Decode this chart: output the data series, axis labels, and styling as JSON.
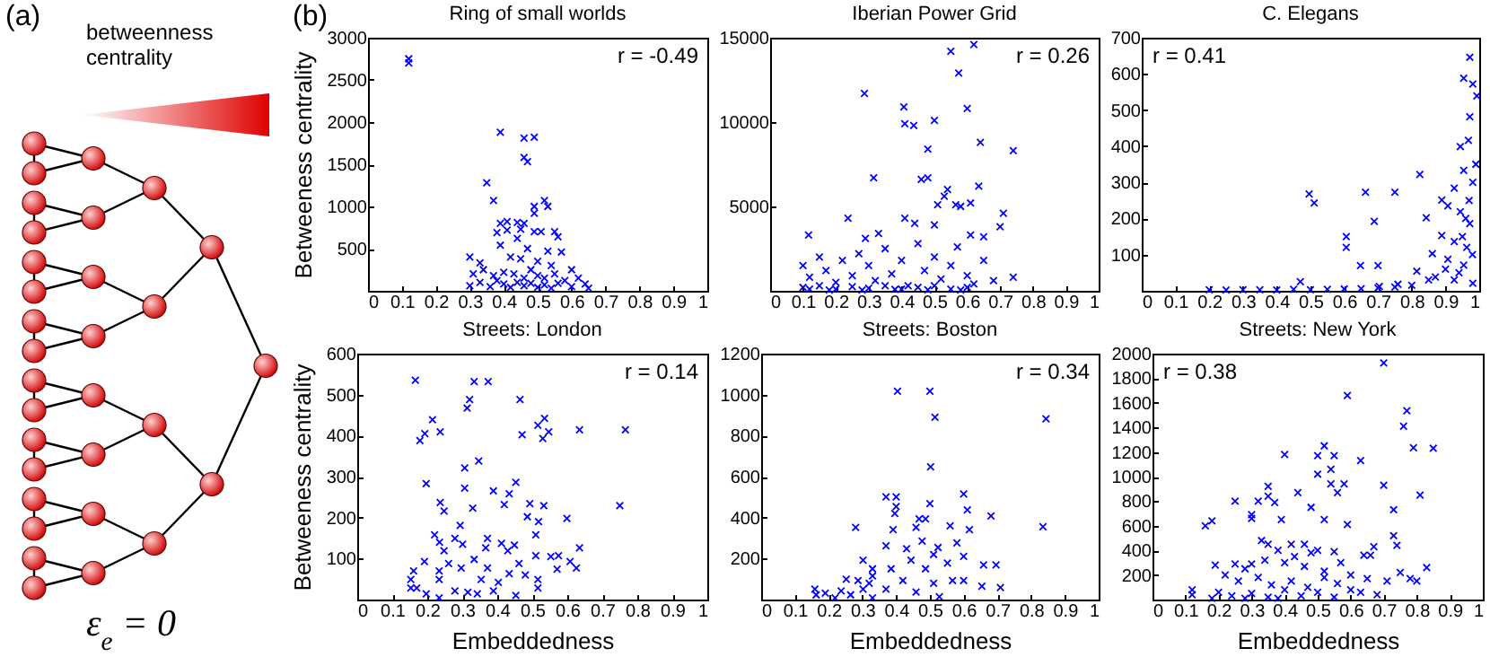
{
  "chart_data": [
    {
      "type": "other",
      "title": "(a)",
      "annotations": [
        "betweenness centrality",
        "ε$_{e}$ = 0",
        "(b)"
      ]
    },
    {
      "type": "scatter",
      "title": "Ring of small worlds",
      "ylabel": "Betweeness centrality",
      "annotations": [
        "r = -0.49"
      ],
      "marker": "cross",
      "xlim": [
        0,
        1
      ],
      "xticks": [
        0,
        0.1,
        0.2,
        0.3,
        0.4,
        0.5,
        0.6,
        0.7,
        0.8,
        0.9,
        1
      ],
      "ylim": [
        0,
        3000
      ],
      "yticks": [
        500,
        1000,
        1500,
        2000,
        2500,
        3000
      ],
      "series": [
        {
          "color": "#0000ff",
          "x": [
            0.12,
            0.12,
            0.39,
            0.46,
            0.49,
            0.46,
            0.47,
            0.35,
            0.37,
            0.52,
            0.49,
            0.53,
            0.49,
            0.39,
            0.41,
            0.44,
            0.46,
            0.45,
            0.41,
            0.38,
            0.44,
            0.49,
            0.51,
            0.55,
            0.56,
            0.39,
            0.47,
            0.53,
            0.57,
            0.3,
            0.33,
            0.42,
            0.45,
            0.5,
            0.54,
            0.6,
            0.31,
            0.34,
            0.37,
            0.4,
            0.43,
            0.46,
            0.48,
            0.5,
            0.52,
            0.55,
            0.58,
            0.62,
            0.64,
            0.3,
            0.33,
            0.36,
            0.38,
            0.4,
            0.42,
            0.44,
            0.46,
            0.48,
            0.5,
            0.52,
            0.54,
            0.56,
            0.6,
            0.65
          ],
          "values": [
            2750,
            2700,
            1880,
            1810,
            1820,
            1580,
            1530,
            1280,
            1070,
            1070,
            1000,
            1000,
            920,
            800,
            820,
            810,
            800,
            730,
            720,
            690,
            620,
            700,
            700,
            700,
            640,
            540,
            500,
            470,
            460,
            400,
            330,
            400,
            380,
            350,
            300,
            250,
            200,
            250,
            180,
            220,
            200,
            150,
            250,
            180,
            150,
            200,
            120,
            150,
            80,
            60,
            100,
            50,
            120,
            80,
            40,
            100,
            60,
            90,
            40,
            70,
            30,
            90,
            50,
            30
          ]
        }
      ]
    },
    {
      "type": "scatter",
      "title": "Iberian Power Grid",
      "annotations": [
        "r = 0.26"
      ],
      "marker": "cross",
      "xlim": [
        0,
        1
      ],
      "xticks": [
        0,
        0.1,
        0.2,
        0.3,
        0.4,
        0.5,
        0.6,
        0.7,
        0.8,
        0.9,
        1
      ],
      "ylim": [
        0,
        15000
      ],
      "yticks": [
        5000,
        10000,
        15000
      ],
      "series": [
        {
          "color": "#0000ff",
          "x": [
            0.55,
            0.62,
            0.574,
            0.6,
            0.407,
            0.41,
            0.437,
            0.5,
            0.64,
            0.74,
            0.48,
            0.48,
            0.46,
            0.54,
            0.635,
            0.51,
            0.53,
            0.565,
            0.58,
            0.61,
            0.71,
            0.41,
            0.7,
            0.44,
            0.5,
            0.61,
            0.65,
            0.74,
            0.287,
            0.315,
            0.237,
            0.117,
            0.29,
            0.33,
            0.1,
            0.12,
            0.15,
            0.17,
            0.2,
            0.22,
            0.25,
            0.27,
            0.3,
            0.32,
            0.35,
            0.37,
            0.4,
            0.42,
            0.45,
            0.47,
            0.5,
            0.52,
            0.55,
            0.57,
            0.6,
            0.62,
            0.65,
            0.68,
            0.1,
            0.15,
            0.2,
            0.25,
            0.3,
            0.35,
            0.4,
            0.45,
            0.5,
            0.55,
            0.6,
            0.12,
            0.18,
            0.28,
            0.38,
            0.48,
            0.58
          ],
          "values": [
            14200,
            14600,
            12900,
            10800,
            10900,
            9900,
            9800,
            10100,
            8800,
            8300,
            8400,
            6700,
            6600,
            6000,
            6200,
            5100,
            5600,
            5100,
            5000,
            5200,
            4600,
            4300,
            3800,
            4000,
            3900,
            3300,
            3200,
            800,
            11700,
            6700,
            4300,
            3300,
            3100,
            3400,
            1500,
            800,
            2000,
            1200,
            500,
            1800,
            900,
            2200,
            1500,
            600,
            2500,
            1000,
            1800,
            300,
            2800,
            1200,
            2000,
            700,
            1500,
            2600,
            900,
            400,
            1800,
            600,
            200,
            300,
            100,
            250,
            150,
            300,
            100,
            200,
            300,
            100,
            200,
            100,
            50,
            50,
            80,
            60,
            50
          ]
        }
      ]
    },
    {
      "type": "scatter",
      "title": "C. Elegans",
      "annotations": [
        "r = 0.41"
      ],
      "marker": "cross",
      "xlim": [
        0,
        1
      ],
      "xticks": [
        0,
        0.1,
        0.2,
        0.3,
        0.4,
        0.5,
        0.6,
        0.7,
        0.8,
        0.9,
        1
      ],
      "ylim": [
        0,
        700
      ],
      "yticks": [
        100,
        200,
        300,
        400,
        500,
        600,
        700
      ],
      "series": [
        {
          "color": "#0000ff",
          "x": [
            0.496,
            0.511,
            0.663,
            0.75,
            0.689,
            0.606,
            0.606,
            0.648,
            0.7,
            0.47,
            0.824,
            0.843,
            0.889,
            0.972,
            0.954,
            0.981,
            0.993,
            0.972,
            0.944,
            0.968,
            0.954,
            0.981,
            0.926,
            0.907,
            0.944,
            0.972,
            0.889,
            0.926,
            0.963,
            0.861,
            0.907,
            0.954,
            0.815,
            0.87,
            0.926,
            0.981,
            0.759,
            0.704,
            0.2,
            0.25,
            0.3,
            0.35,
            0.4,
            0.45,
            0.5,
            0.55,
            0.6,
            0.65,
            0.7,
            0.75,
            0.8,
            0.85,
            0.9,
            0.95,
            0.97,
            0.99,
            0.96,
            0.98,
            0.94
          ],
          "values": [
            268,
            243,
            273,
            273,
            192,
            150,
            120,
            70,
            70,
            25,
            322,
            202,
            251,
            646,
            588,
            572,
            539,
            481,
            399,
            416,
            333,
            300,
            284,
            235,
            219,
            186,
            153,
            136,
            120,
            103,
            87,
            71,
            54,
            38,
            30,
            21,
            18,
            12,
            3,
            2,
            3,
            3,
            2,
            4,
            3,
            4,
            5,
            6,
            8,
            10,
            15,
            30,
            60,
            150,
            250,
            350,
            200,
            100,
            50
          ]
        }
      ]
    },
    {
      "type": "scatter",
      "title": "Streets: London",
      "xlabel": "Embeddedness",
      "ylabel": "Betweeness centrality",
      "annotations": [
        "r = 0.14"
      ],
      "marker": "cross",
      "xlim": [
        0,
        1
      ],
      "xticks": [
        0,
        0.1,
        0.2,
        0.3,
        0.4,
        0.5,
        0.6,
        0.7,
        0.8,
        0.9,
        1
      ],
      "ylim": [
        0,
        600
      ],
      "yticks": [
        100,
        200,
        300,
        400,
        500,
        600
      ],
      "series": [
        {
          "color": "#0000ff",
          "x": [
            0.166,
            0.334,
            0.374,
            0.321,
            0.314,
            0.465,
            0.215,
            0.193,
            0.179,
            0.237,
            0.535,
            0.516,
            0.547,
            0.53,
            0.471,
            0.635,
            0.766,
            0.347,
            0.307,
            0.197,
            0.453,
            0.307,
            0.389,
            0.434,
            0.237,
            0.248,
            0.33,
            0.42,
            0.493,
            0.533,
            0.599,
            0.75,
            0.486,
            0.518,
            0.294,
            0.221,
            0.235,
            0.279,
            0.301,
            0.372,
            0.412,
            0.449,
            0.51,
            0.575,
            0.635,
            0.51,
            0.367,
            0.43,
            0.248,
            0.192,
            0.261,
            0.334,
            0.462,
            0.553,
            0.608,
            0.626,
            0.571,
            0.161,
            0.234,
            0.297,
            0.372,
            0.434,
            0.48,
            0.516,
            0.153,
            0.234,
            0.354,
            0.403,
            0.153,
            0.17,
            0.197,
            0.279,
            0.316,
            0.343,
            0.389,
            0.453,
            0.516,
            0.234
          ],
          "values": [
            535,
            532,
            532,
            488,
            467,
            488,
            439,
            405,
            388,
            409,
            442,
            425,
            409,
            393,
            402,
            414,
            414,
            338,
            321,
            283,
            286,
            272,
            265,
            258,
            237,
            216,
            223,
            232,
            234,
            229,
            198,
            229,
            202,
            190,
            181,
            158,
            140,
            149,
            135,
            149,
            137,
            133,
            158,
            107,
            126,
            107,
            126,
            119,
            119,
            93,
            88,
            98,
            88,
            105,
            93,
            77,
            74,
            70,
            70,
            77,
            77,
            63,
            60,
            49,
            49,
            49,
            49,
            42,
            28,
            28,
            14,
            21,
            18,
            14,
            21,
            10,
            28,
            4
          ]
        }
      ]
    },
    {
      "type": "scatter",
      "title": "Streets: Boston",
      "xlabel": "Embeddedness",
      "annotations": [
        "r = 0.34"
      ],
      "marker": "cross",
      "xlim": [
        0,
        1
      ],
      "xticks": [
        0,
        0.1,
        0.2,
        0.3,
        0.4,
        0.5,
        0.6,
        0.7,
        0.8,
        0.9,
        1
      ],
      "ylim": [
        0,
        1200
      ],
      "yticks": [
        200,
        400,
        600,
        800,
        1000,
        1200
      ],
      "series": [
        {
          "color": "#0000ff",
          "x": [
            0.404,
            0.5,
            0.515,
            0.844,
            0.502,
            0.37,
            0.4,
            0.6,
            0.5,
            0.4,
            0.611,
            0.681,
            0.835,
            0.396,
            0.468,
            0.487,
            0.617,
            0.391,
            0.459,
            0.56,
            0.477,
            0.524,
            0.58,
            0.37,
            0.431,
            0.511,
            0.6,
            0.659,
            0.696,
            0.444,
            0.552,
            0.385,
            0.487,
            0.6,
            0.654,
            0.709,
            0.33,
            0.42,
            0.511,
            0.567,
            0.37,
            0.459,
            0.528,
            0.28,
            0.302,
            0.252,
            0.287,
            0.32,
            0.33,
            0.159,
            0.163,
            0.19,
            0.237,
            0.219,
            0.265,
            0.302,
            0.33
          ],
          "values": [
            1017,
            1017,
            890,
            882,
            648,
            501,
            501,
            515,
            468,
            454,
            437,
            408,
            355,
            420,
            394,
            394,
            341,
            341,
            352,
            360,
            285,
            254,
            276,
            262,
            248,
            220,
            211,
            169,
            169,
            192,
            178,
            150,
            150,
            93,
            65,
            59,
            115,
            93,
            79,
            93,
            51,
            37,
            14,
            352,
            192,
            99,
            93,
            79,
            150,
            51,
            23,
            31,
            42,
            8,
            23,
            51,
            8
          ]
        }
      ]
    },
    {
      "type": "scatter",
      "title": "Streets: New York",
      "xlabel": "Embeddedness",
      "annotations": [
        "r = 0.38"
      ],
      "marker": "cross",
      "xlim": [
        0,
        1
      ],
      "xticks": [
        0,
        0.1,
        0.2,
        0.3,
        0.4,
        0.5,
        0.6,
        0.7,
        0.8,
        0.9,
        1
      ],
      "ylim": [
        0,
        2000
      ],
      "yticks": [
        200,
        400,
        600,
        800,
        1000,
        1200,
        1400,
        1600,
        1800,
        2000
      ],
      "series": [
        {
          "color": "#0000ff",
          "x": [
            0.7,
            0.59,
            0.77,
            0.76,
            0.79,
            0.85,
            0.52,
            0.5,
            0.55,
            0.4,
            0.63,
            0.54,
            0.5,
            0.54,
            0.58,
            0.7,
            0.56,
            0.35,
            0.44,
            0.81,
            0.35,
            0.37,
            0.25,
            0.32,
            0.48,
            0.73,
            0.3,
            0.3,
            0.39,
            0.52,
            0.18,
            0.16,
            0.59,
            0.73,
            0.74,
            0.33,
            0.35,
            0.42,
            0.46,
            0.5,
            0.55,
            0.64,
            0.67,
            0.66,
            0.19,
            0.25,
            0.3,
            0.38,
            0.43,
            0.48,
            0.57,
            0.83,
            0.75,
            0.78,
            0.8,
            0.71,
            0.65,
            0.6,
            0.52,
            0.46,
            0.4,
            0.34,
            0.28,
            0.22,
            0.26,
            0.32,
            0.36,
            0.42,
            0.47,
            0.52,
            0.56,
            0.6,
            0.63,
            0.12,
            0.12,
            0.2,
            0.24,
            0.3,
            0.35,
            0.4,
            0.45,
            0.5,
            0.55,
            0.68,
            0.18,
            0.28,
            0.38
          ],
          "values": [
            1925,
            1660,
            1535,
            1410,
            1235,
            1230,
            1250,
            1170,
            1170,
            1180,
            1130,
            1060,
            1020,
            940,
            940,
            930,
            870,
            920,
            870,
            850,
            840,
            790,
            800,
            800,
            750,
            730,
            690,
            660,
            650,
            650,
            640,
            600,
            610,
            520,
            440,
            480,
            450,
            450,
            450,
            400,
            390,
            360,
            430,
            360,
            280,
            290,
            290,
            400,
            350,
            380,
            300,
            260,
            220,
            170,
            150,
            150,
            170,
            200,
            230,
            270,
            300,
            320,
            250,
            200,
            150,
            180,
            120,
            150,
            100,
            180,
            130,
            80,
            60,
            80,
            40,
            60,
            30,
            50,
            20,
            80,
            30,
            60,
            20,
            40,
            10,
            10,
            10
          ]
        }
      ]
    }
  ]
}
